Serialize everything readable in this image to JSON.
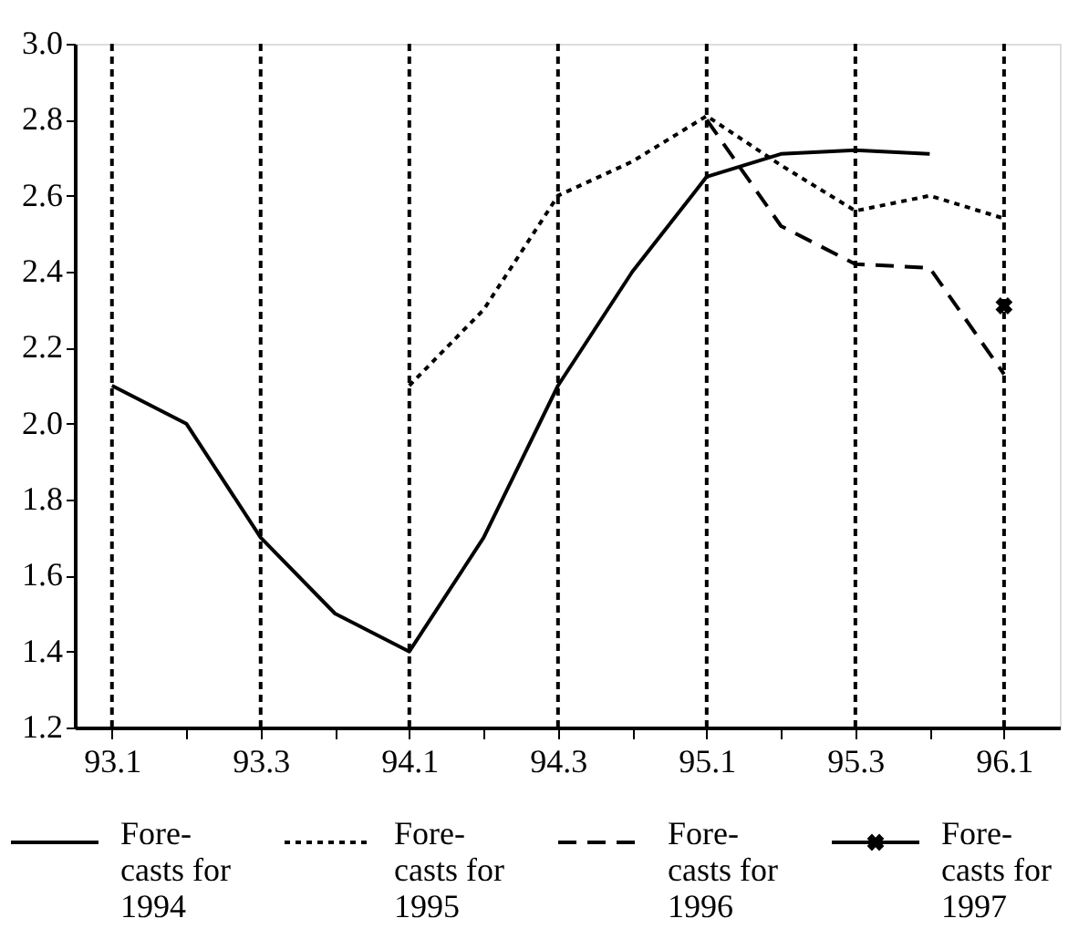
{
  "chart_data": {
    "type": "line",
    "categories": [
      "93.1",
      null,
      "93.3",
      null,
      "94.1",
      null,
      "94.3",
      null,
      "95.1",
      null,
      "95.3",
      null,
      "96.1"
    ],
    "series": [
      {
        "name": "Fore-\ncasts for\n1994",
        "color": "#000000",
        "line_style": "solid",
        "values": [
          2.1,
          2.0,
          1.7,
          1.5,
          1.4,
          1.7,
          2.1,
          2.4,
          2.65,
          2.71,
          2.72,
          2.71,
          null
        ]
      },
      {
        "name": "Fore-\ncasts for\n1995",
        "color": "#000000",
        "line_style": "dotted",
        "values": [
          null,
          null,
          null,
          null,
          2.1,
          2.3,
          2.6,
          2.69,
          2.81,
          2.68,
          2.56,
          2.6,
          2.54
        ]
      },
      {
        "name": "Fore-\ncasts for\n1996",
        "color": "#000000",
        "line_style": "dashed",
        "values": [
          null,
          null,
          null,
          null,
          null,
          null,
          null,
          null,
          2.8,
          2.52,
          2.42,
          2.41,
          2.13
        ]
      },
      {
        "name": "Fore-\ncasts for\n1997",
        "color": "#000000",
        "line_style": "solid",
        "marker": "cross",
        "values": [
          null,
          null,
          null,
          null,
          null,
          null,
          null,
          null,
          null,
          null,
          null,
          null,
          2.31
        ]
      }
    ],
    "ylim": [
      1.2,
      3.0
    ],
    "yticks": [
      1.2,
      1.4,
      1.6,
      1.8,
      {
        "value": 2,
        "label": "2.0"
      },
      2.2,
      2.4,
      2.6,
      2.8,
      {
        "value": 3,
        "label": "3.0"
      }
    ],
    "grid": "x",
    "legend": "bottom"
  }
}
